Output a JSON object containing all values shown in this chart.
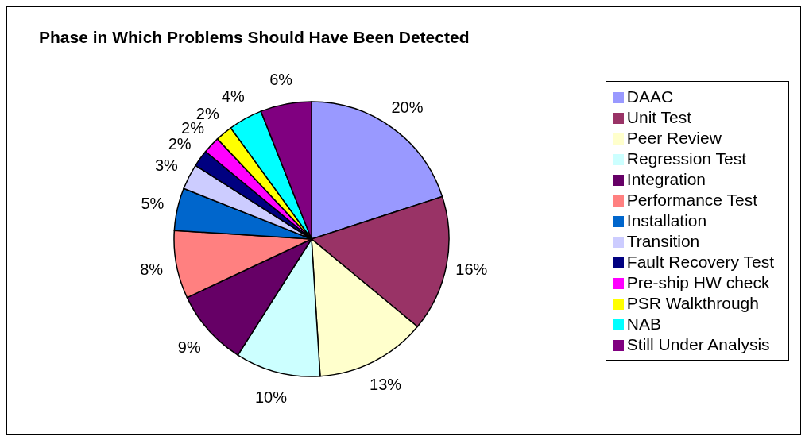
{
  "chart_data": {
    "type": "pie",
    "title": "Phase in Which Problems Should Have Been Detected",
    "categories": [
      "DAAC",
      "Unit Test",
      "Peer Review",
      "Regression Test",
      "Integration",
      "Performance Test",
      "Installation",
      "Transition",
      "Fault Recovery Test",
      "Pre-ship HW check",
      "PSR Walkthrough",
      "NAB",
      "Still Under Analysis"
    ],
    "values": [
      20,
      16,
      13,
      10,
      9,
      8,
      5,
      3,
      2,
      2,
      2,
      4,
      6
    ],
    "colors": [
      "#9999ff",
      "#993366",
      "#ffffcc",
      "#ccffff",
      "#660066",
      "#ff8080",
      "#0066cc",
      "#ccccff",
      "#000080",
      "#ff00ff",
      "#ffff00",
      "#00ffff",
      "#800080"
    ],
    "value_labels": [
      "20%",
      "16%",
      "13%",
      "10%",
      "9%",
      "8%",
      "5%",
      "3%",
      "2%",
      "2%",
      "2%",
      "4%",
      "6%"
    ],
    "legend": "right"
  }
}
